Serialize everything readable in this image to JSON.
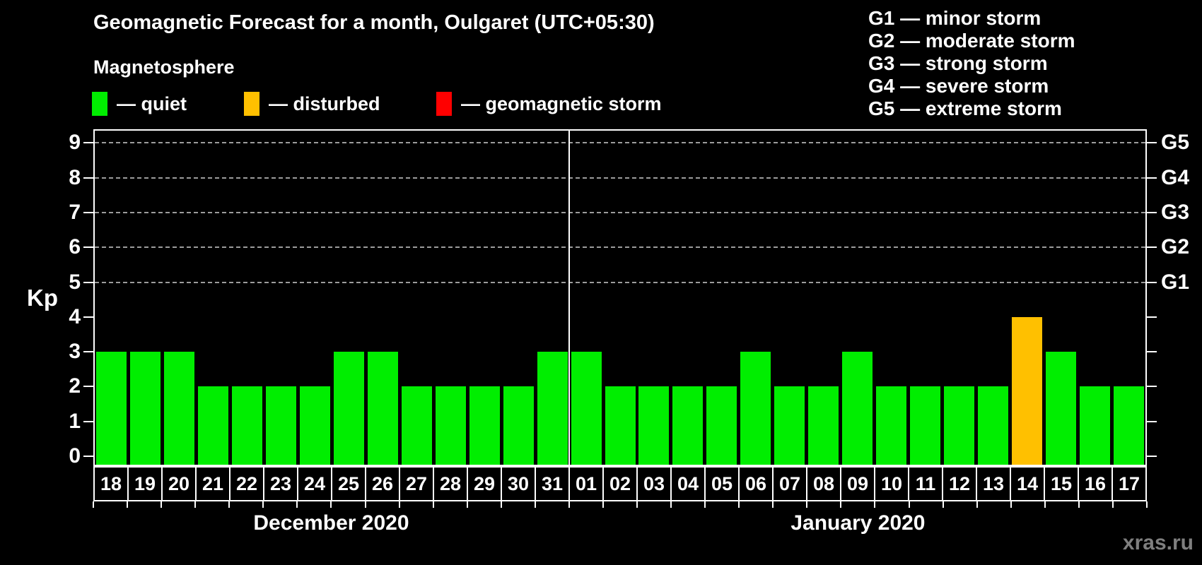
{
  "title": "Geomagnetic Forecast for a month, Oulgaret (UTC+05:30)",
  "legend": {
    "heading": "Magnetosphere",
    "items": [
      {
        "key": "quiet",
        "label": "— quiet",
        "color": "#00EE00"
      },
      {
        "key": "disturbed",
        "label": "— disturbed",
        "color": "#FFC000"
      },
      {
        "key": "storm",
        "label": "— geomagnetic storm",
        "color": "#FF0000"
      }
    ]
  },
  "g_legend": {
    "lines": [
      "G1 — minor storm",
      "G2 — moderate storm",
      "G3 — strong storm",
      "G4 — severe storm",
      "G5 — extreme storm"
    ]
  },
  "watermark": "xras.ru",
  "chart_data": {
    "type": "bar",
    "title": "Geomagnetic Forecast for a month, Oulgaret (UTC+05:30)",
    "ylabel": "Kp",
    "ylim": [
      0,
      9
    ],
    "yticks": [
      0,
      1,
      2,
      3,
      4,
      5,
      6,
      7,
      8,
      9
    ],
    "gridlines_at_kp": [
      5,
      6,
      7,
      8,
      9
    ],
    "grid_style": "dashed horizontal lines at G-storm levels only",
    "right_axis": [
      {
        "label": "G1",
        "kp": 5
      },
      {
        "label": "G2",
        "kp": 6
      },
      {
        "label": "G3",
        "kp": 7
      },
      {
        "label": "G4",
        "kp": 8
      },
      {
        "label": "G5",
        "kp": 9
      }
    ],
    "bar_colors": {
      "quiet": "#00EE00",
      "disturbed": "#FFC000",
      "storm": "#FF0000"
    },
    "months": [
      {
        "label": "December 2020",
        "days": [
          {
            "day": "18",
            "kp": 3,
            "status": "quiet"
          },
          {
            "day": "19",
            "kp": 3,
            "status": "quiet"
          },
          {
            "day": "20",
            "kp": 3,
            "status": "quiet"
          },
          {
            "day": "21",
            "kp": 2,
            "status": "quiet"
          },
          {
            "day": "22",
            "kp": 2,
            "status": "quiet"
          },
          {
            "day": "23",
            "kp": 2,
            "status": "quiet"
          },
          {
            "day": "24",
            "kp": 2,
            "status": "quiet"
          },
          {
            "day": "25",
            "kp": 3,
            "status": "quiet"
          },
          {
            "day": "26",
            "kp": 3,
            "status": "quiet"
          },
          {
            "day": "27",
            "kp": 2,
            "status": "quiet"
          },
          {
            "day": "28",
            "kp": 2,
            "status": "quiet"
          },
          {
            "day": "29",
            "kp": 2,
            "status": "quiet"
          },
          {
            "day": "30",
            "kp": 2,
            "status": "quiet"
          },
          {
            "day": "31",
            "kp": 3,
            "status": "quiet"
          }
        ]
      },
      {
        "label": "January 2020",
        "days": [
          {
            "day": "01",
            "kp": 3,
            "status": "quiet"
          },
          {
            "day": "02",
            "kp": 2,
            "status": "quiet"
          },
          {
            "day": "03",
            "kp": 2,
            "status": "quiet"
          },
          {
            "day": "04",
            "kp": 2,
            "status": "quiet"
          },
          {
            "day": "05",
            "kp": 2,
            "status": "quiet"
          },
          {
            "day": "06",
            "kp": 3,
            "status": "quiet"
          },
          {
            "day": "07",
            "kp": 2,
            "status": "quiet"
          },
          {
            "day": "08",
            "kp": 2,
            "status": "quiet"
          },
          {
            "day": "09",
            "kp": 3,
            "status": "quiet"
          },
          {
            "day": "10",
            "kp": 2,
            "status": "quiet"
          },
          {
            "day": "11",
            "kp": 2,
            "status": "quiet"
          },
          {
            "day": "12",
            "kp": 2,
            "status": "quiet"
          },
          {
            "day": "13",
            "kp": 2,
            "status": "quiet"
          },
          {
            "day": "14",
            "kp": 4,
            "status": "disturbed"
          },
          {
            "day": "15",
            "kp": 3,
            "status": "quiet"
          },
          {
            "day": "16",
            "kp": 2,
            "status": "quiet"
          },
          {
            "day": "17",
            "kp": 2,
            "status": "quiet"
          }
        ]
      }
    ]
  }
}
